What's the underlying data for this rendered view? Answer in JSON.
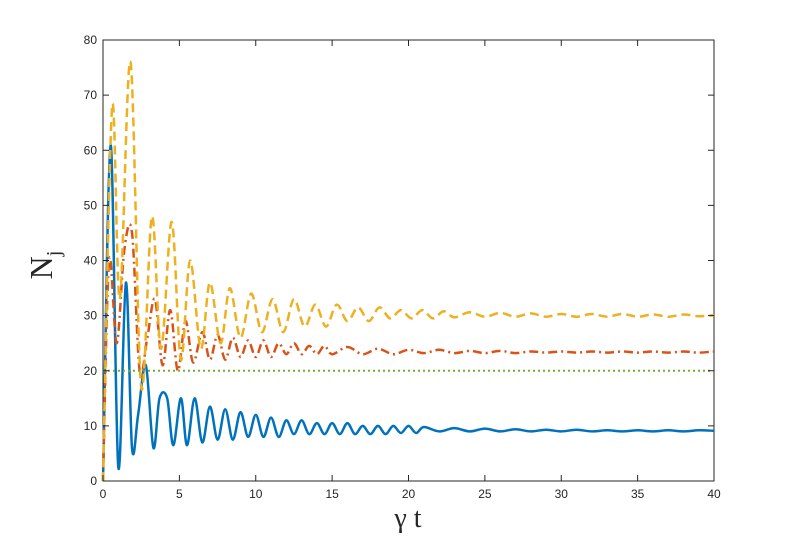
{
  "chart_data": {
    "type": "line",
    "title": "",
    "xlabel": "γ t",
    "ylabel_main": "N",
    "ylabel_sub": "j",
    "xlim": [
      0,
      40
    ],
    "ylim": [
      0,
      80
    ],
    "xticks": [
      0,
      5,
      10,
      15,
      20,
      25,
      30,
      35,
      40
    ],
    "yticks": [
      0,
      10,
      20,
      30,
      40,
      50,
      60,
      70,
      80
    ],
    "grid": false,
    "legend": "none",
    "series": [
      {
        "style": "solid",
        "color": "#0072BD",
        "x": [
          0,
          0.5,
          1.0,
          1.5,
          1.9,
          2.3,
          2.8,
          3.3,
          3.7,
          4.2,
          4.6,
          5.1,
          5.5,
          6.0,
          6.5,
          7.0,
          7.5,
          8.0,
          8.5,
          9.0,
          9.5,
          10.0,
          10.5,
          11.0,
          11.5,
          12.0,
          12.5,
          13.0,
          13.5,
          14.0,
          14.5,
          15.0,
          15.5,
          16.0,
          16.5,
          17.0,
          17.5,
          18.0,
          18.5,
          19.0,
          19.5,
          20.0,
          20.5,
          21.0,
          22.0,
          23.0,
          24.0,
          25.0,
          26.0,
          27.0,
          28.0,
          29.0,
          30.0,
          31.0,
          32.0,
          33.0,
          34.0,
          35.0,
          36.0,
          37.0,
          38.0,
          39.0,
          40.0
        ],
        "y": [
          0,
          61,
          2.5,
          36,
          6,
          12,
          21,
          6,
          15,
          15,
          6.5,
          15,
          6.5,
          15,
          7,
          13.5,
          7.5,
          13,
          7.5,
          12.5,
          8,
          12,
          8,
          11.5,
          8,
          11,
          8.5,
          11,
          8.5,
          10.5,
          8.5,
          10.5,
          8.5,
          10.5,
          8.5,
          10,
          8.5,
          10,
          8.5,
          10,
          8.7,
          10,
          8.7,
          9.8,
          9,
          9.6,
          9,
          9.5,
          9,
          9.4,
          9,
          9.3,
          9,
          9.3,
          9,
          9.2,
          9,
          9.2,
          9,
          9.2,
          9,
          9.2,
          9.1
        ]
      },
      {
        "style": "dashdot",
        "color": "#D95319",
        "x": [
          0,
          0.4,
          0.9,
          1.4,
          1.9,
          2.4,
          2.9,
          3.4,
          3.9,
          4.4,
          4.9,
          5.4,
          5.9,
          6.5,
          7.0,
          7.5,
          8.0,
          8.5,
          9.0,
          9.5,
          10.0,
          10.5,
          11.0,
          11.5,
          12.0,
          12.5,
          13.0,
          13.5,
          14.0,
          14.5,
          15.0,
          16.0,
          17.0,
          18.0,
          19.0,
          20.0,
          21.0,
          22.0,
          23.0,
          24.0,
          25.0,
          26.0,
          27.0,
          28.0,
          29.0,
          30.0,
          31.0,
          32.0,
          33.0,
          34.0,
          35.0,
          36.0,
          37.0,
          38.0,
          39.0,
          40.0
        ],
        "y": [
          0,
          40,
          25,
          42,
          45,
          20,
          26,
          33,
          21,
          31,
          20,
          29,
          21.5,
          27,
          22,
          26.5,
          22,
          26,
          22.5,
          25.5,
          22.5,
          25.5,
          22.5,
          25,
          23,
          25,
          23,
          24.5,
          23,
          24.5,
          23,
          24.3,
          23,
          24,
          23,
          23.8,
          23.2,
          23.8,
          23.2,
          23.6,
          23.2,
          23.6,
          23.2,
          23.5,
          23.3,
          23.5,
          23.3,
          23.5,
          23.3,
          23.5,
          23.3,
          23.5,
          23.3,
          23.5,
          23.3,
          23.5
        ]
      },
      {
        "style": "dashed",
        "color": "#EDB120",
        "x": [
          0,
          0.6,
          1.1,
          1.8,
          2.5,
          3.2,
          3.8,
          4.5,
          5.1,
          5.7,
          6.4,
          7.0,
          7.7,
          8.3,
          9.0,
          9.7,
          10.4,
          11.1,
          11.8,
          12.5,
          13.2,
          13.9,
          14.6,
          15.3,
          16.0,
          16.7,
          17.4,
          18.1,
          18.8,
          19.5,
          20.2,
          20.9,
          21.6,
          22.3,
          23.0,
          24.0,
          25.0,
          26.0,
          27.0,
          28.0,
          29.0,
          30.0,
          31.0,
          32.0,
          33.0,
          34.0,
          35.0,
          36.0,
          37.0,
          38.0,
          39.0,
          40.0
        ],
        "y": [
          0,
          68,
          33,
          76,
          17,
          48,
          24,
          47,
          22,
          40,
          24,
          36,
          25,
          35,
          26,
          34,
          27,
          33,
          27,
          33,
          28,
          32,
          28,
          32,
          29,
          31.5,
          29,
          31.5,
          29.5,
          31,
          29.5,
          31,
          29.5,
          30.8,
          29.7,
          30.6,
          29.8,
          30.5,
          29.8,
          30.4,
          29.8,
          30.3,
          29.8,
          30.3,
          29.8,
          30.3,
          29.8,
          30.2,
          29.8,
          30.2,
          29.9,
          30.1
        ]
      },
      {
        "style": "dotted",
        "color": "#77AC30",
        "x": [
          0,
          40
        ],
        "y": [
          20,
          20
        ]
      }
    ]
  }
}
